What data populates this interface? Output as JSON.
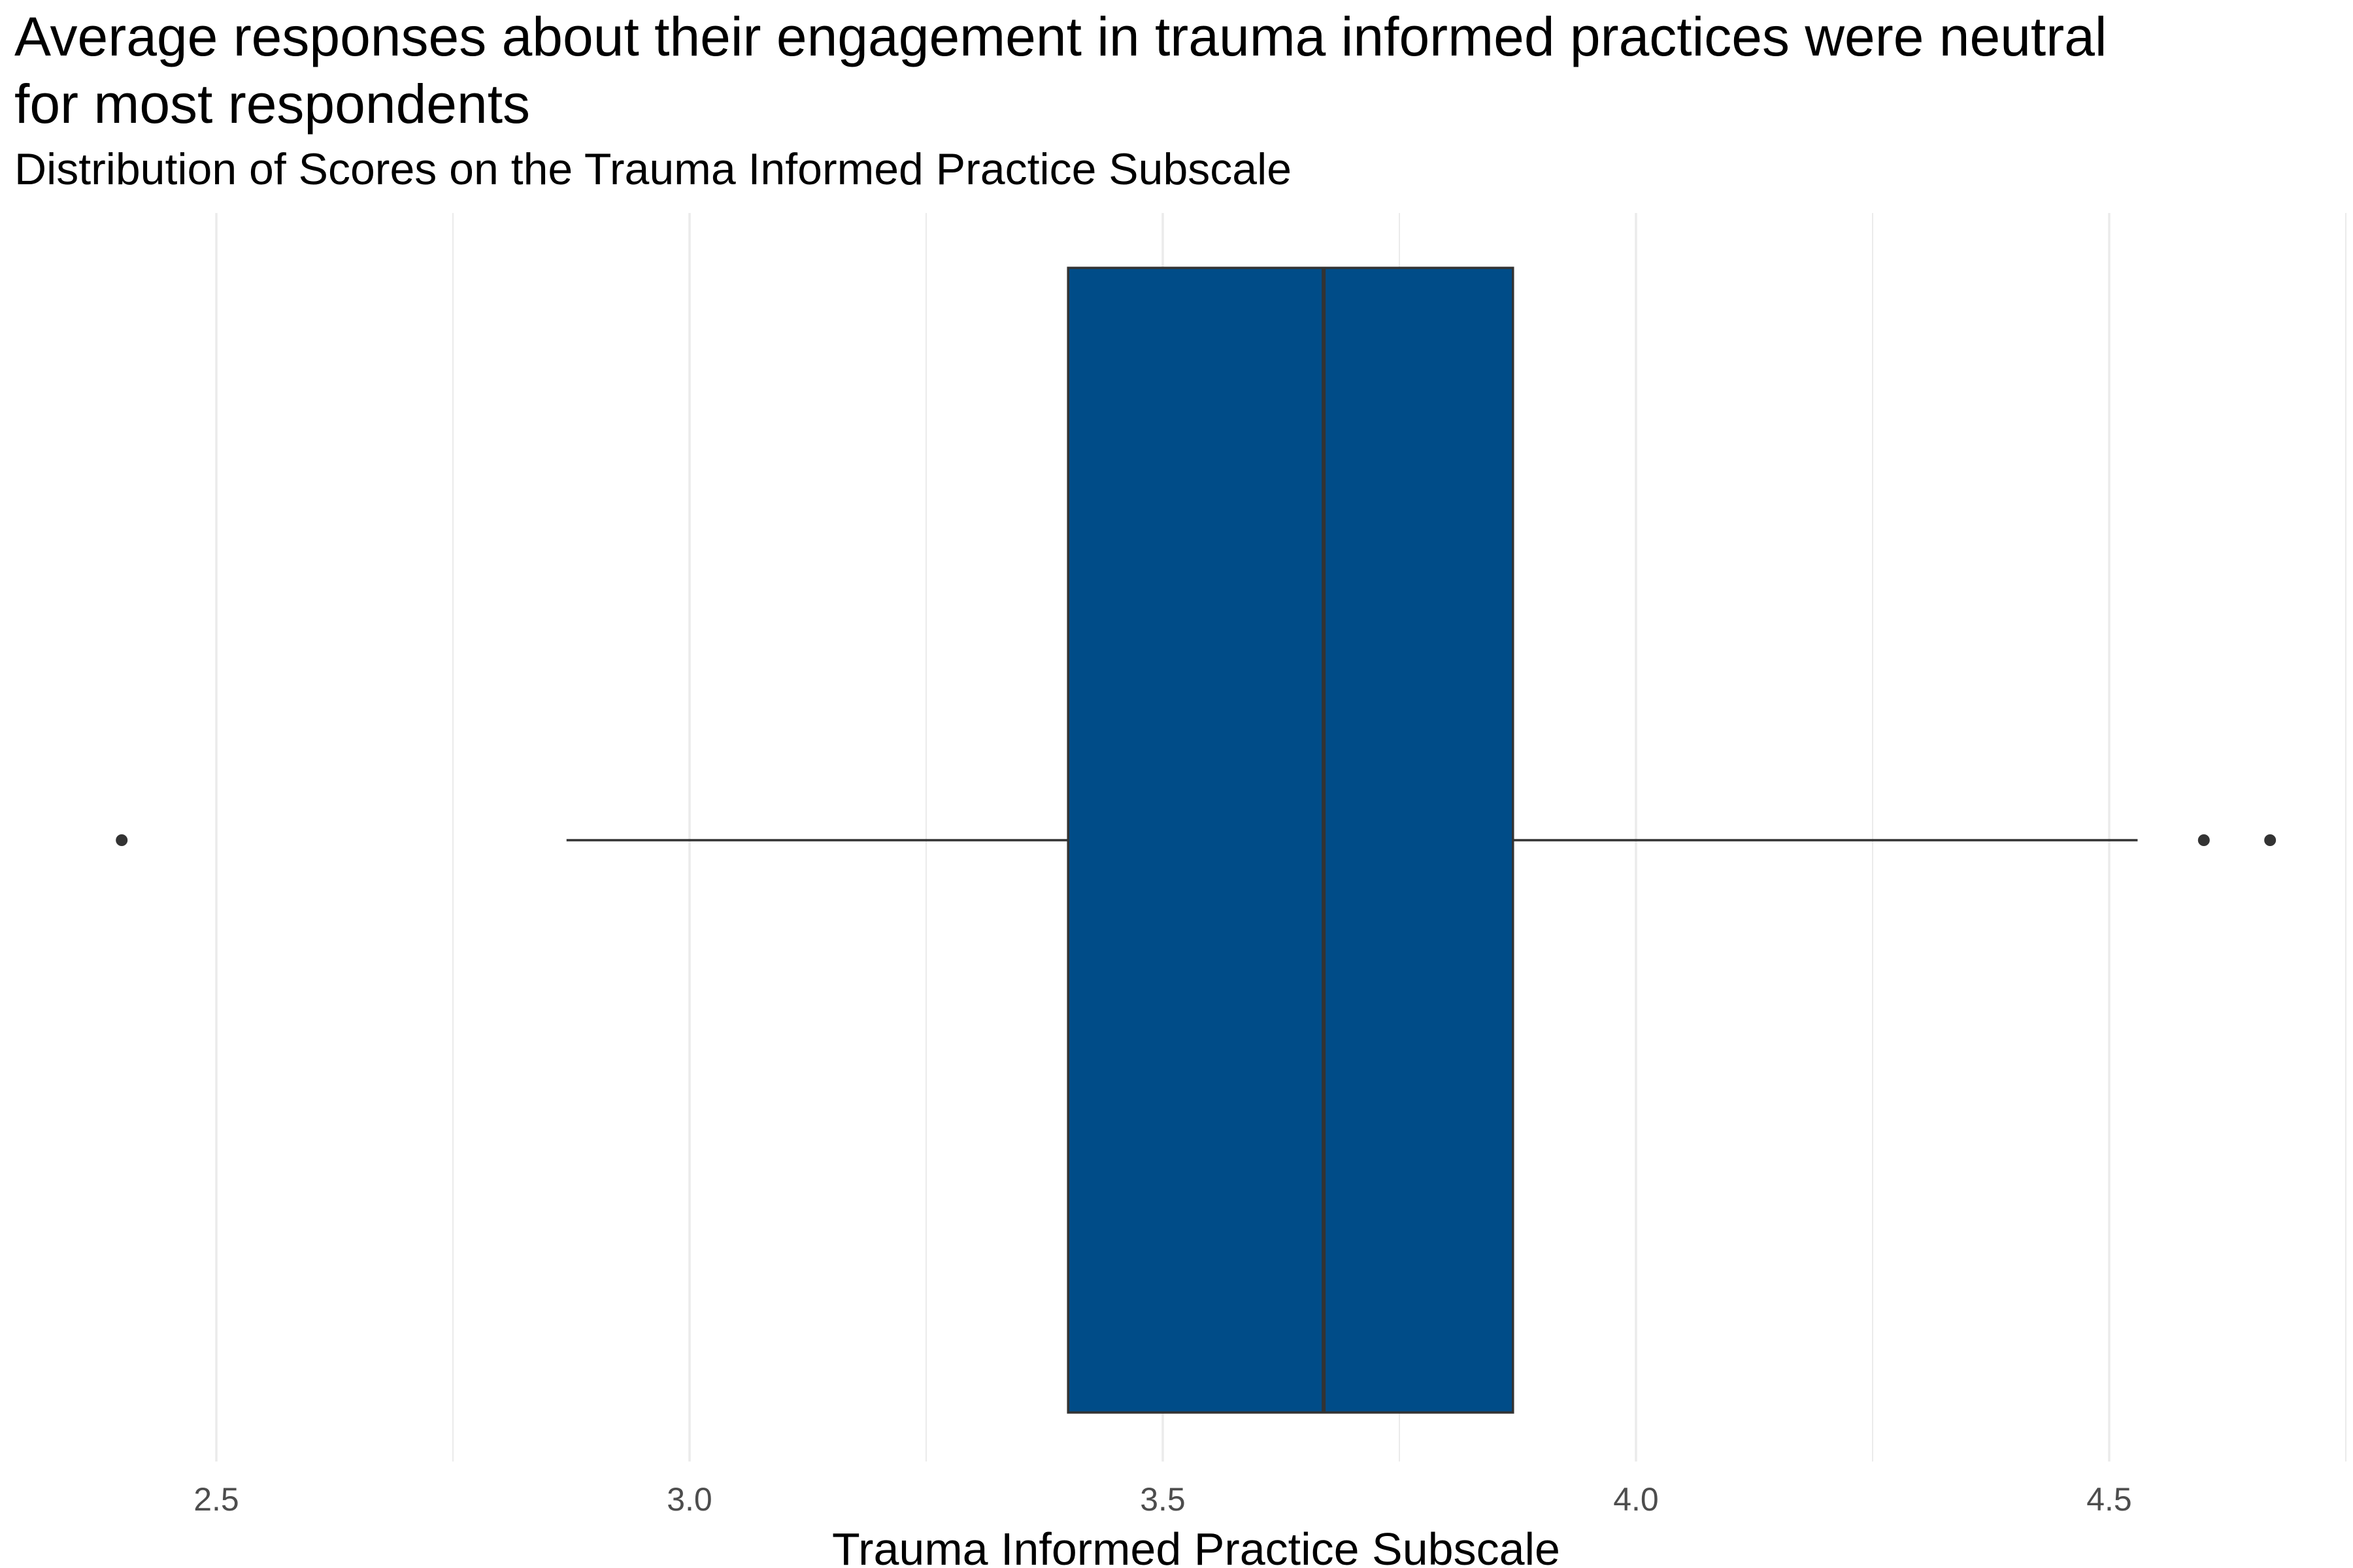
{
  "chart_data": {
    "type": "boxplot",
    "title": [
      "Average responses about their engagement in trauma informed practices were neutral",
      "for most respondents"
    ],
    "subtitle": "Distribution of Scores on the Trauma Informed Practice Subscale",
    "xlabel": "Trauma Informed Practice Subscale",
    "ylabel": "",
    "xlim": [
      2.35,
      4.78
    ],
    "x_ticks": [
      2.5,
      3.0,
      3.5,
      4.0,
      4.5
    ],
    "x_tick_labels": [
      "2.5",
      "3.0",
      "3.5",
      "4.0",
      "4.5"
    ],
    "minor_gridlines": [
      2.75,
      3.25,
      3.75,
      4.25,
      4.75
    ],
    "grid": true,
    "box": {
      "lower_whisker": 2.87,
      "q1": 3.4,
      "median": 3.67,
      "q3": 3.87,
      "upper_whisker": 4.53,
      "outliers": [
        2.4,
        4.6,
        4.67
      ]
    },
    "colors": {
      "fill": "#004C88",
      "outline": "#333333",
      "grid": "#EBEBEB"
    }
  }
}
